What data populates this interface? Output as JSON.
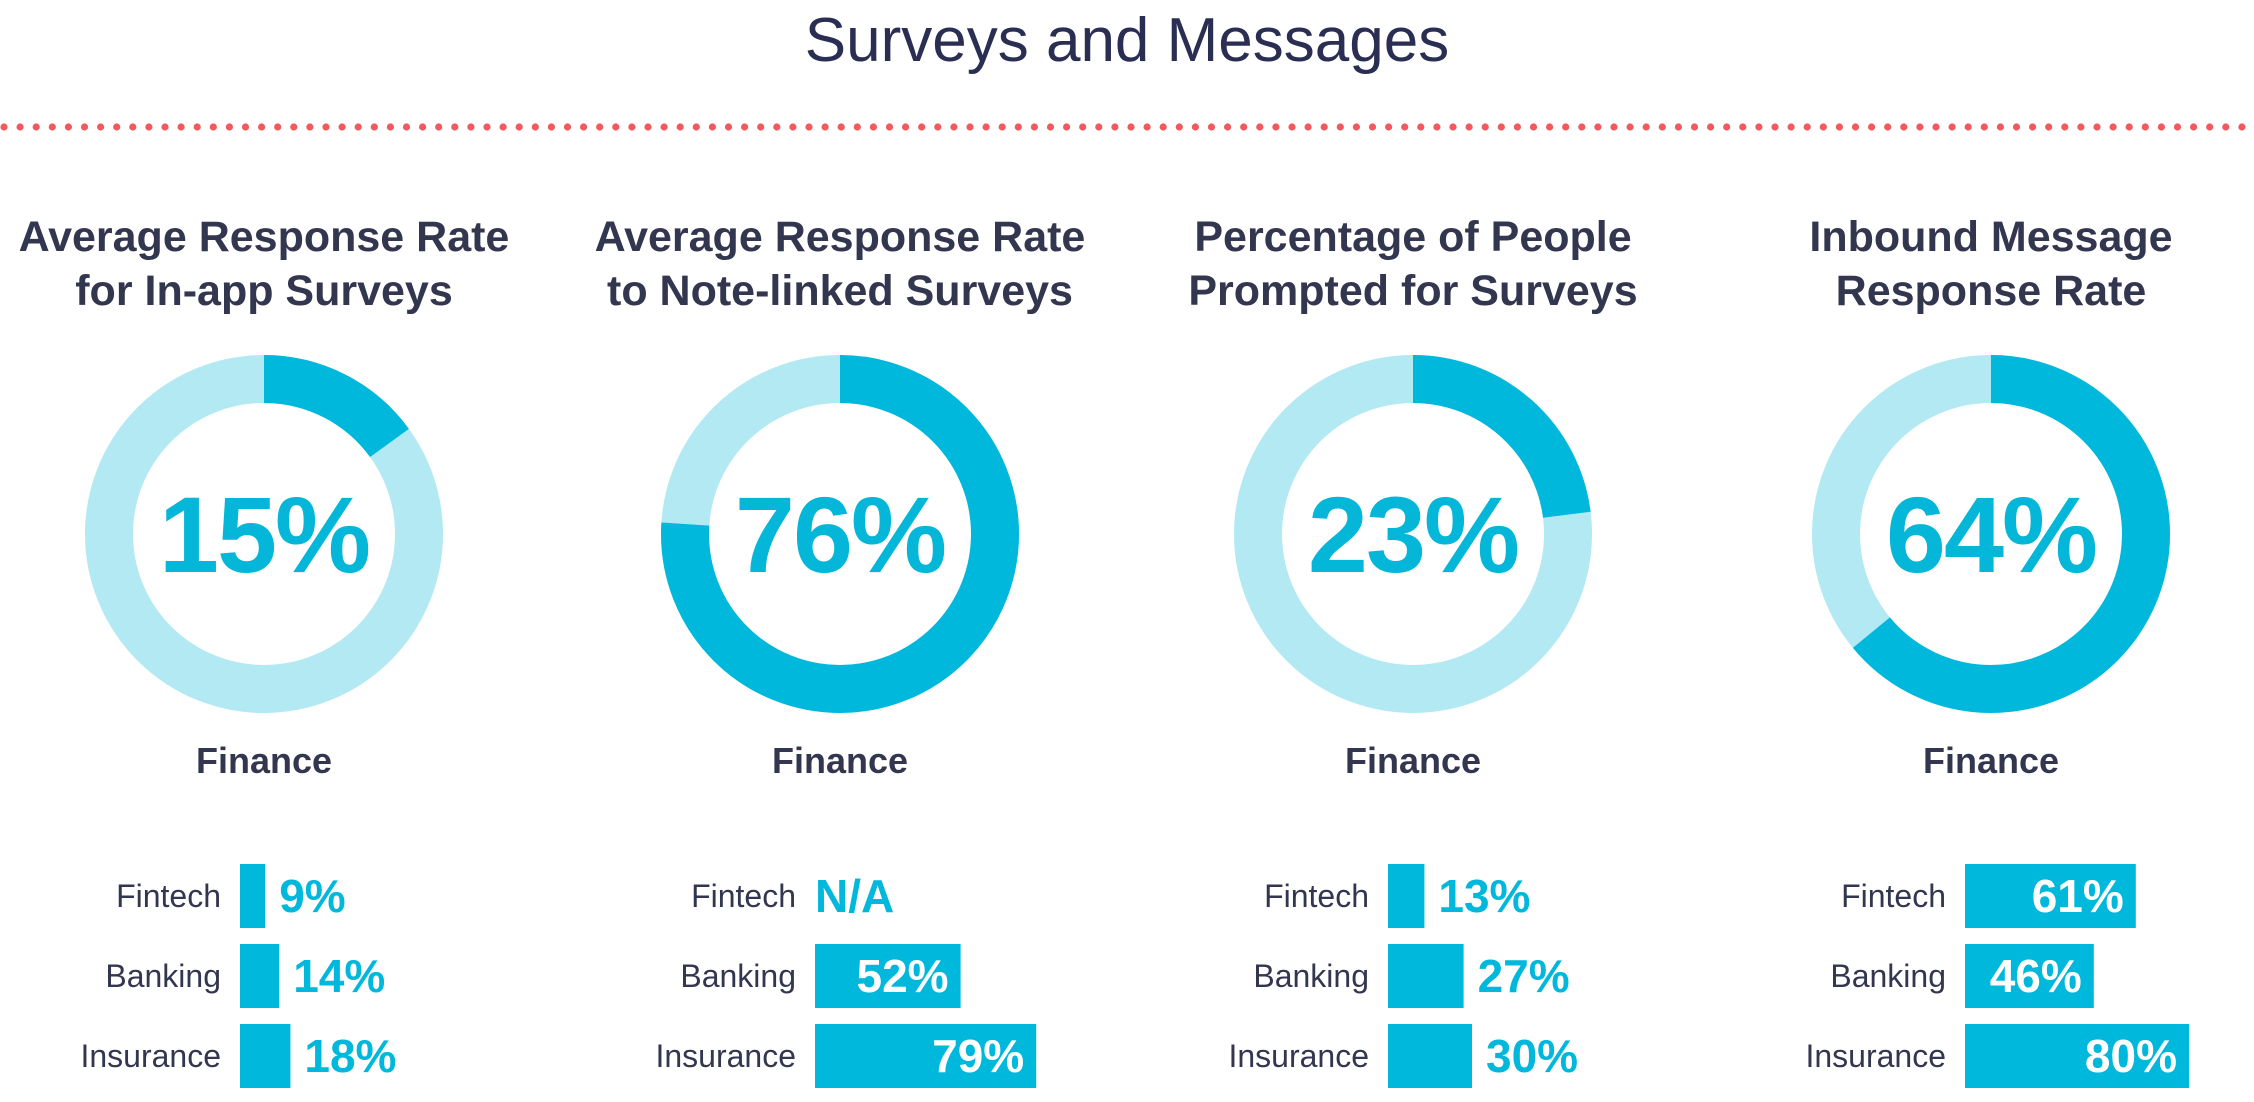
{
  "page": {
    "title": "Surveys and Messages",
    "accent_color": "#00b7dc",
    "track_color": "#b2e9f3",
    "divider_color": "#f05a5f"
  },
  "chart_data": [
    {
      "type": "pie",
      "title": "Average Response Rate for In-app Surveys",
      "title_lines": [
        "Average Response Rate",
        "for In-app Surveys"
      ],
      "donut_value": 15,
      "donut_label": "15%",
      "segment": "Finance",
      "bars": {
        "type": "bar",
        "categories": [
          "Fintech",
          "Banking",
          "Insurance"
        ],
        "values": [
          9,
          14,
          18
        ],
        "labels": [
          "9%",
          "14%",
          "18%"
        ]
      }
    },
    {
      "type": "pie",
      "title": "Average Response Rate to Note-linked Surveys",
      "title_lines": [
        "Average Response Rate",
        "to Note-linked Surveys"
      ],
      "donut_value": 76,
      "donut_label": "76%",
      "segment": "Finance",
      "bars": {
        "type": "bar",
        "categories": [
          "Fintech",
          "Banking",
          "Insurance"
        ],
        "values": [
          null,
          52,
          79
        ],
        "labels": [
          "N/A",
          "52%",
          "79%"
        ]
      }
    },
    {
      "type": "pie",
      "title": "Percentage of People Prompted for Surveys",
      "title_lines": [
        "Percentage of People",
        "Prompted for Surveys"
      ],
      "donut_value": 23,
      "donut_label": "23%",
      "segment": "Finance",
      "bars": {
        "type": "bar",
        "categories": [
          "Fintech",
          "Banking",
          "Insurance"
        ],
        "values": [
          13,
          27,
          30
        ],
        "labels": [
          "13%",
          "27%",
          "30%"
        ]
      }
    },
    {
      "type": "pie",
      "title": "Inbound Message Response Rate",
      "title_lines": [
        "Inbound Message",
        "Response Rate"
      ],
      "donut_value": 64,
      "donut_label": "64%",
      "segment": "Finance",
      "bars": {
        "type": "bar",
        "categories": [
          "Fintech",
          "Banking",
          "Insurance"
        ],
        "values": [
          61,
          46,
          80
        ],
        "labels": [
          "61%",
          "46%",
          "80%"
        ]
      }
    }
  ]
}
